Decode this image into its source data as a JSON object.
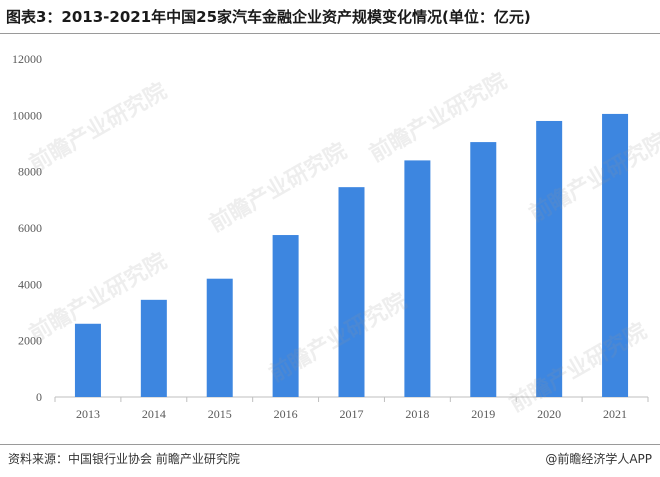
{
  "header": {
    "title": "图表3：2013-2021年中国25家汽车金融企业资产规模变化情况(单位：亿元)"
  },
  "footer": {
    "source": "资料来源：中国银行业协会 前瞻产业研究院",
    "credit": "@前瞻经济学人APP"
  },
  "watermark": {
    "text": "前瞻产业研究院"
  },
  "colors": {
    "bar": "#3d86e0",
    "axis": "#bfbfbf",
    "tick_text": "#595959"
  },
  "chart_data": {
    "type": "bar",
    "categories": [
      "2013",
      "2014",
      "2015",
      "2016",
      "2017",
      "2018",
      "2019",
      "2020",
      "2021"
    ],
    "series": [
      {
        "values": [
          2600,
          3450,
          4200,
          5750,
          7450,
          8400,
          9050,
          9800,
          10050
        ]
      }
    ],
    "ylim": [
      0,
      12000
    ],
    "yticks": [
      0,
      2000,
      4000,
      6000,
      8000,
      10000,
      12000
    ],
    "grid": false,
    "legend": "none"
  }
}
